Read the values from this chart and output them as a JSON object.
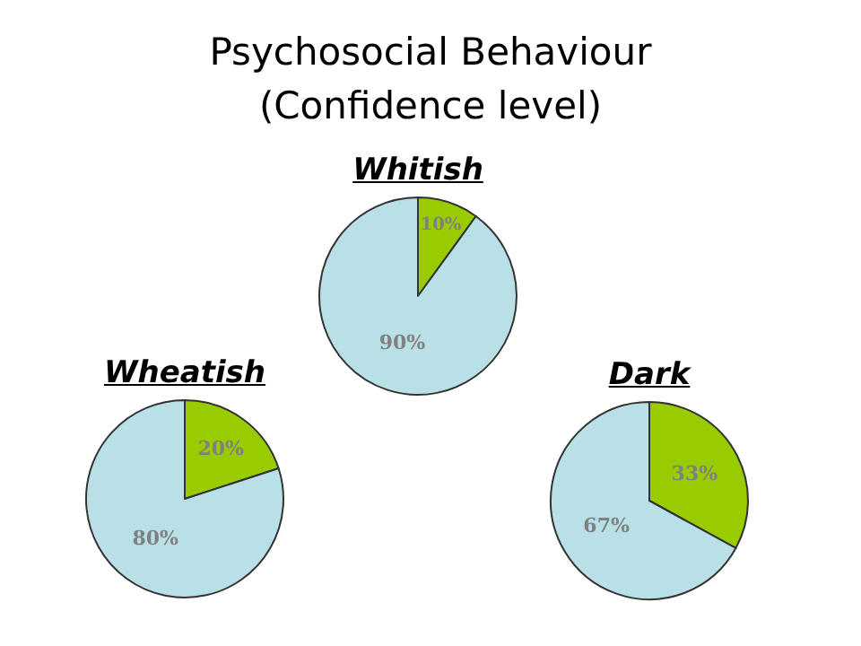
{
  "chart_data": [
    {
      "type": "other",
      "title": "Psychosocial Behaviour\n(Confidence level)"
    },
    {
      "type": "pie",
      "title": "Whitish",
      "categories": [
        null,
        null
      ],
      "values": [
        10,
        90
      ],
      "colors": [
        "#99cc00",
        "#b8e0e6"
      ],
      "value_labels": [
        "10%",
        "90%"
      ]
    },
    {
      "type": "pie",
      "title": "Wheatish",
      "categories": [
        null,
        null
      ],
      "values": [
        20,
        80
      ],
      "colors": [
        "#99cc00",
        "#b8e0e6"
      ],
      "value_labels": [
        "20%",
        "80%"
      ]
    },
    {
      "type": "pie",
      "title": "Dark",
      "categories": [
        null,
        null
      ],
      "values": [
        33,
        67
      ],
      "colors": [
        "#99cc00",
        "#b8e0e6"
      ],
      "value_labels": [
        "33%",
        "67%"
      ]
    }
  ]
}
